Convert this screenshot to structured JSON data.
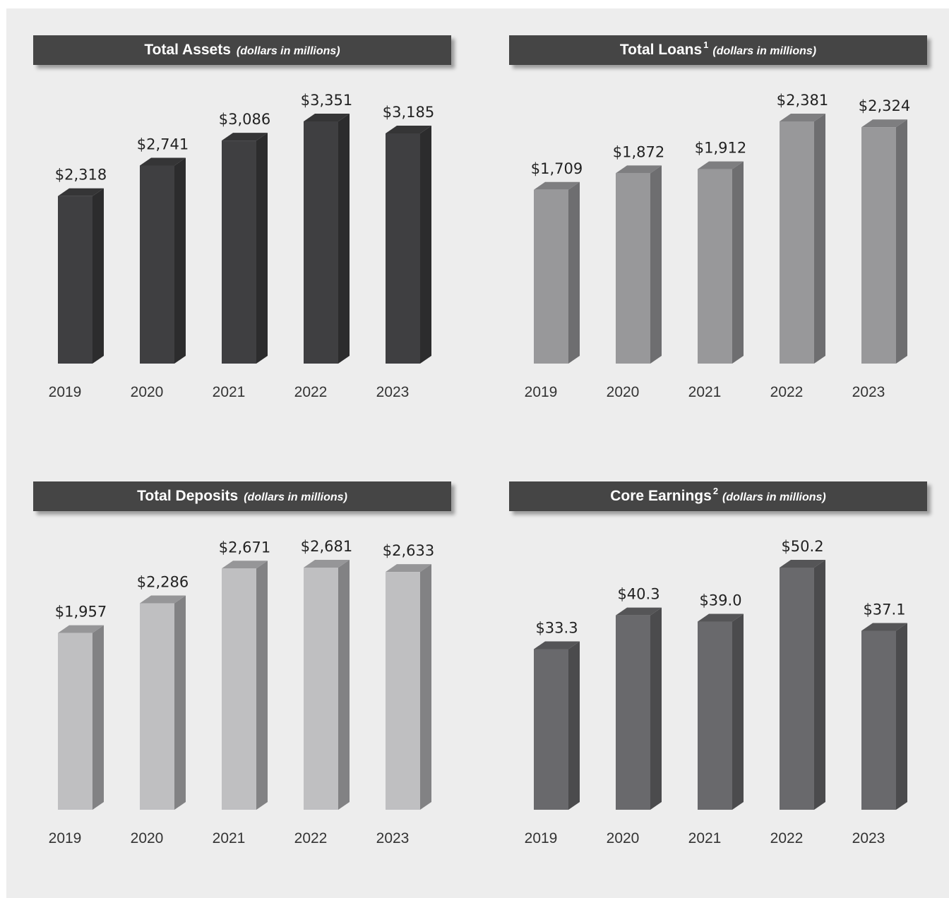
{
  "charts": [
    {
      "title": "Total Assets",
      "sup": "",
      "subtitle": "(dollars in millions)",
      "colors": {
        "front": "#3f3f41",
        "side": "#2c2c2d",
        "top": "#353536"
      }
    },
    {
      "title": "Total Loans",
      "sup": "1",
      "subtitle": "(dollars in millions)",
      "colors": {
        "front": "#98989a",
        "side": "#6e6e70",
        "top": "#7e7e80"
      }
    },
    {
      "title": "Total Deposits",
      "sup": "",
      "subtitle": "(dollars in millions)",
      "colors": {
        "front": "#bfbfc1",
        "side": "#828284",
        "top": "#969698"
      }
    },
    {
      "title": "Core Earnings",
      "sup": "2",
      "subtitle": "(dollars in millions)",
      "colors": {
        "front": "#69696c",
        "side": "#4b4b4d",
        "top": "#555557"
      }
    }
  ],
  "chart_data": [
    {
      "type": "bar",
      "title": "Total Assets (dollars in millions)",
      "categories": [
        "2019",
        "2020",
        "2021",
        "2022",
        "2023"
      ],
      "values": [
        2318,
        2741,
        3086,
        3351,
        3185
      ],
      "labels": [
        "$2,318",
        "$2,741",
        "$3,086",
        "$3,351",
        "$3,185"
      ],
      "ylim": [
        0,
        3351
      ],
      "grid": false
    },
    {
      "type": "bar",
      "title": "Total Loans1 (dollars in millions)",
      "categories": [
        "2019",
        "2020",
        "2021",
        "2022",
        "2023"
      ],
      "values": [
        1709,
        1872,
        1912,
        2381,
        2324
      ],
      "labels": [
        "$1,709",
        "$1,872",
        "$1,912",
        "$2,381",
        "$2,324"
      ],
      "ylim": [
        0,
        2381
      ],
      "grid": false
    },
    {
      "type": "bar",
      "title": "Total Deposits (dollars in millions)",
      "categories": [
        "2019",
        "2020",
        "2021",
        "2022",
        "2023"
      ],
      "values": [
        1957,
        2286,
        2671,
        2681,
        2633
      ],
      "labels": [
        "$1,957",
        "$2,286",
        "$2,671",
        "$2,681",
        "$2,633"
      ],
      "ylim": [
        0,
        2681
      ],
      "grid": false
    },
    {
      "type": "bar",
      "title": "Core Earnings2 (dollars in millions)",
      "categories": [
        "2019",
        "2020",
        "2021",
        "2022",
        "2023"
      ],
      "values": [
        33.3,
        40.3,
        39.0,
        50.2,
        37.1
      ],
      "labels": [
        "$33.3",
        "$40.3",
        "$39.0",
        "$50.2",
        "$37.1"
      ],
      "ylim": [
        0,
        50.2
      ],
      "grid": false
    }
  ]
}
